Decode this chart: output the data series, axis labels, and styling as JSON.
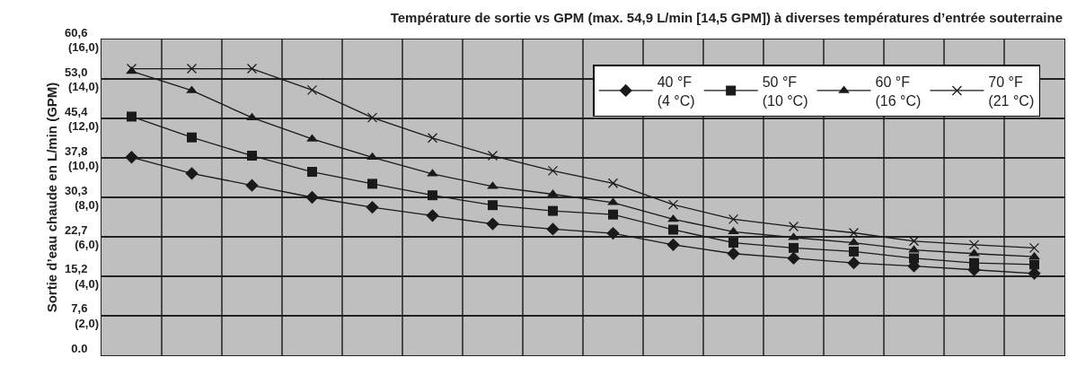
{
  "chart_data": {
    "type": "line",
    "title": "Température de sortie vs GPM (max. 54,9 L/min [14,5 GPM]) à diverses températures d’entrée souterraine",
    "ylabel": "Sortie d’eau chaude en L/min (GPM)",
    "categories": [
      null,
      null,
      null,
      null,
      null,
      null,
      null,
      null,
      null,
      null,
      null,
      null,
      null,
      null,
      null,
      null
    ],
    "series": [
      {
        "name": "40 °F\n(4 °C)",
        "color": "#1a1a1a",
        "marker": "diamond",
        "values": [
          38.0,
          34.9,
          32.6,
          30.3,
          28.4,
          26.8,
          25.2,
          24.2,
          23.4,
          21.2,
          19.5,
          18.6,
          17.7,
          17.1,
          16.4,
          15.7
        ]
      },
      {
        "name": "50 °F\n(10 °C)",
        "color": "#1a1a1a",
        "marker": "square",
        "values": [
          45.8,
          41.8,
          38.3,
          35.2,
          32.9,
          30.7,
          28.8,
          27.7,
          27.0,
          24.1,
          21.6,
          20.6,
          19.9,
          18.6,
          17.7,
          17.4
        ]
      },
      {
        "name": "60 °F\n(16 °C)",
        "color": "#1a1a1a",
        "marker": "triangle",
        "values": [
          54.5,
          50.8,
          45.6,
          41.5,
          38.0,
          34.8,
          32.4,
          30.9,
          29.3,
          26.1,
          23.7,
          22.6,
          21.6,
          20.2,
          19.5,
          18.9
        ]
      },
      {
        "name": "70 °F\n(21 °C)",
        "color": "#1a1a1a",
        "marker": "cross",
        "values": [
          55.0,
          55.0,
          55.0,
          50.9,
          45.6,
          41.7,
          38.3,
          35.4,
          33.0,
          28.9,
          26.1,
          24.7,
          23.5,
          21.9,
          21.2,
          20.6
        ]
      }
    ],
    "ylim": [
      0,
      60.6
    ],
    "yticks": [
      {
        "value": 0,
        "label": "0.0"
      },
      {
        "value": 7.6,
        "label": "7,6"
      },
      {
        "value": 15.2,
        "label": "15,2"
      },
      {
        "value": 22.7,
        "label": "22,7"
      },
      {
        "value": 30.3,
        "label": "30,3"
      },
      {
        "value": 37.8,
        "label": "37,8"
      },
      {
        "value": 45.4,
        "label": "45,4"
      },
      {
        "value": 53.0,
        "label": "53,0"
      },
      {
        "value": 60.6,
        "label": "60,6"
      }
    ],
    "y2lim": [
      0,
      16
    ],
    "y2ticks": [
      {
        "value": 2,
        "label": "(2,0)"
      },
      {
        "value": 4,
        "label": "(4,0)"
      },
      {
        "value": 6,
        "label": "(6,0)"
      },
      {
        "value": 8,
        "label": "(8,0)"
      },
      {
        "value": 10,
        "label": "(10,0)"
      },
      {
        "value": 12,
        "label": "(12,0)"
      },
      {
        "value": 14,
        "label": "(14,0)"
      },
      {
        "value": 16,
        "label": "(16,0)"
      }
    ],
    "grid": true,
    "legend": "top right",
    "tick_labels": "y",
    "line_style": "solid"
  }
}
